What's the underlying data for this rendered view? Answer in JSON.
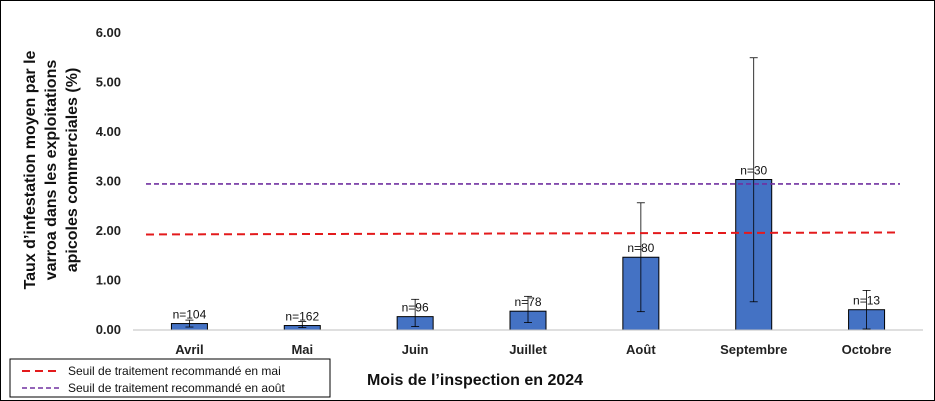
{
  "chart_data": {
    "type": "bar",
    "xlabel": "Mois de l’inspection en 2024",
    "ylabel_lines": [
      "Taux d’infestation moyen par le",
      "varroa dans les exploitations",
      "apicoles commerciales (%)"
    ],
    "ylim": [
      0,
      6
    ],
    "yticks": [
      "0.00",
      "1.00",
      "2.00",
      "3.00",
      "4.00",
      "5.00",
      "6.00"
    ],
    "ytick_values": [
      0,
      1,
      2,
      3,
      4,
      5,
      6
    ],
    "categories": [
      "Avril",
      "Mai",
      "Juin",
      "Juillet",
      "Août",
      "Septembre",
      "Octobre"
    ],
    "values": [
      0.13,
      0.09,
      0.27,
      0.38,
      1.47,
      3.04,
      0.41
    ],
    "error_low": [
      0.06,
      0.05,
      0.07,
      0.15,
      0.37,
      0.57,
      0.02
    ],
    "error_high": [
      0.2,
      0.17,
      0.62,
      0.68,
      2.57,
      5.5,
      0.8
    ],
    "n_labels": [
      "n=104",
      "n=162",
      "n=96",
      "n=78",
      "n=80",
      "n=30",
      "n=13"
    ],
    "bar_color": "#4472C4",
    "thresholds": [
      {
        "label": "Seuil de traitement recommandé en mai",
        "start": 1.93,
        "end": 1.97,
        "color": "#E31A1C",
        "dash": "dashed"
      },
      {
        "label": "Seuil de traitement recommandé en août",
        "start": 2.95,
        "end": 2.95,
        "color": "#7030A0",
        "dash": "dashed"
      }
    ],
    "legend_position": "bottom-left"
  }
}
